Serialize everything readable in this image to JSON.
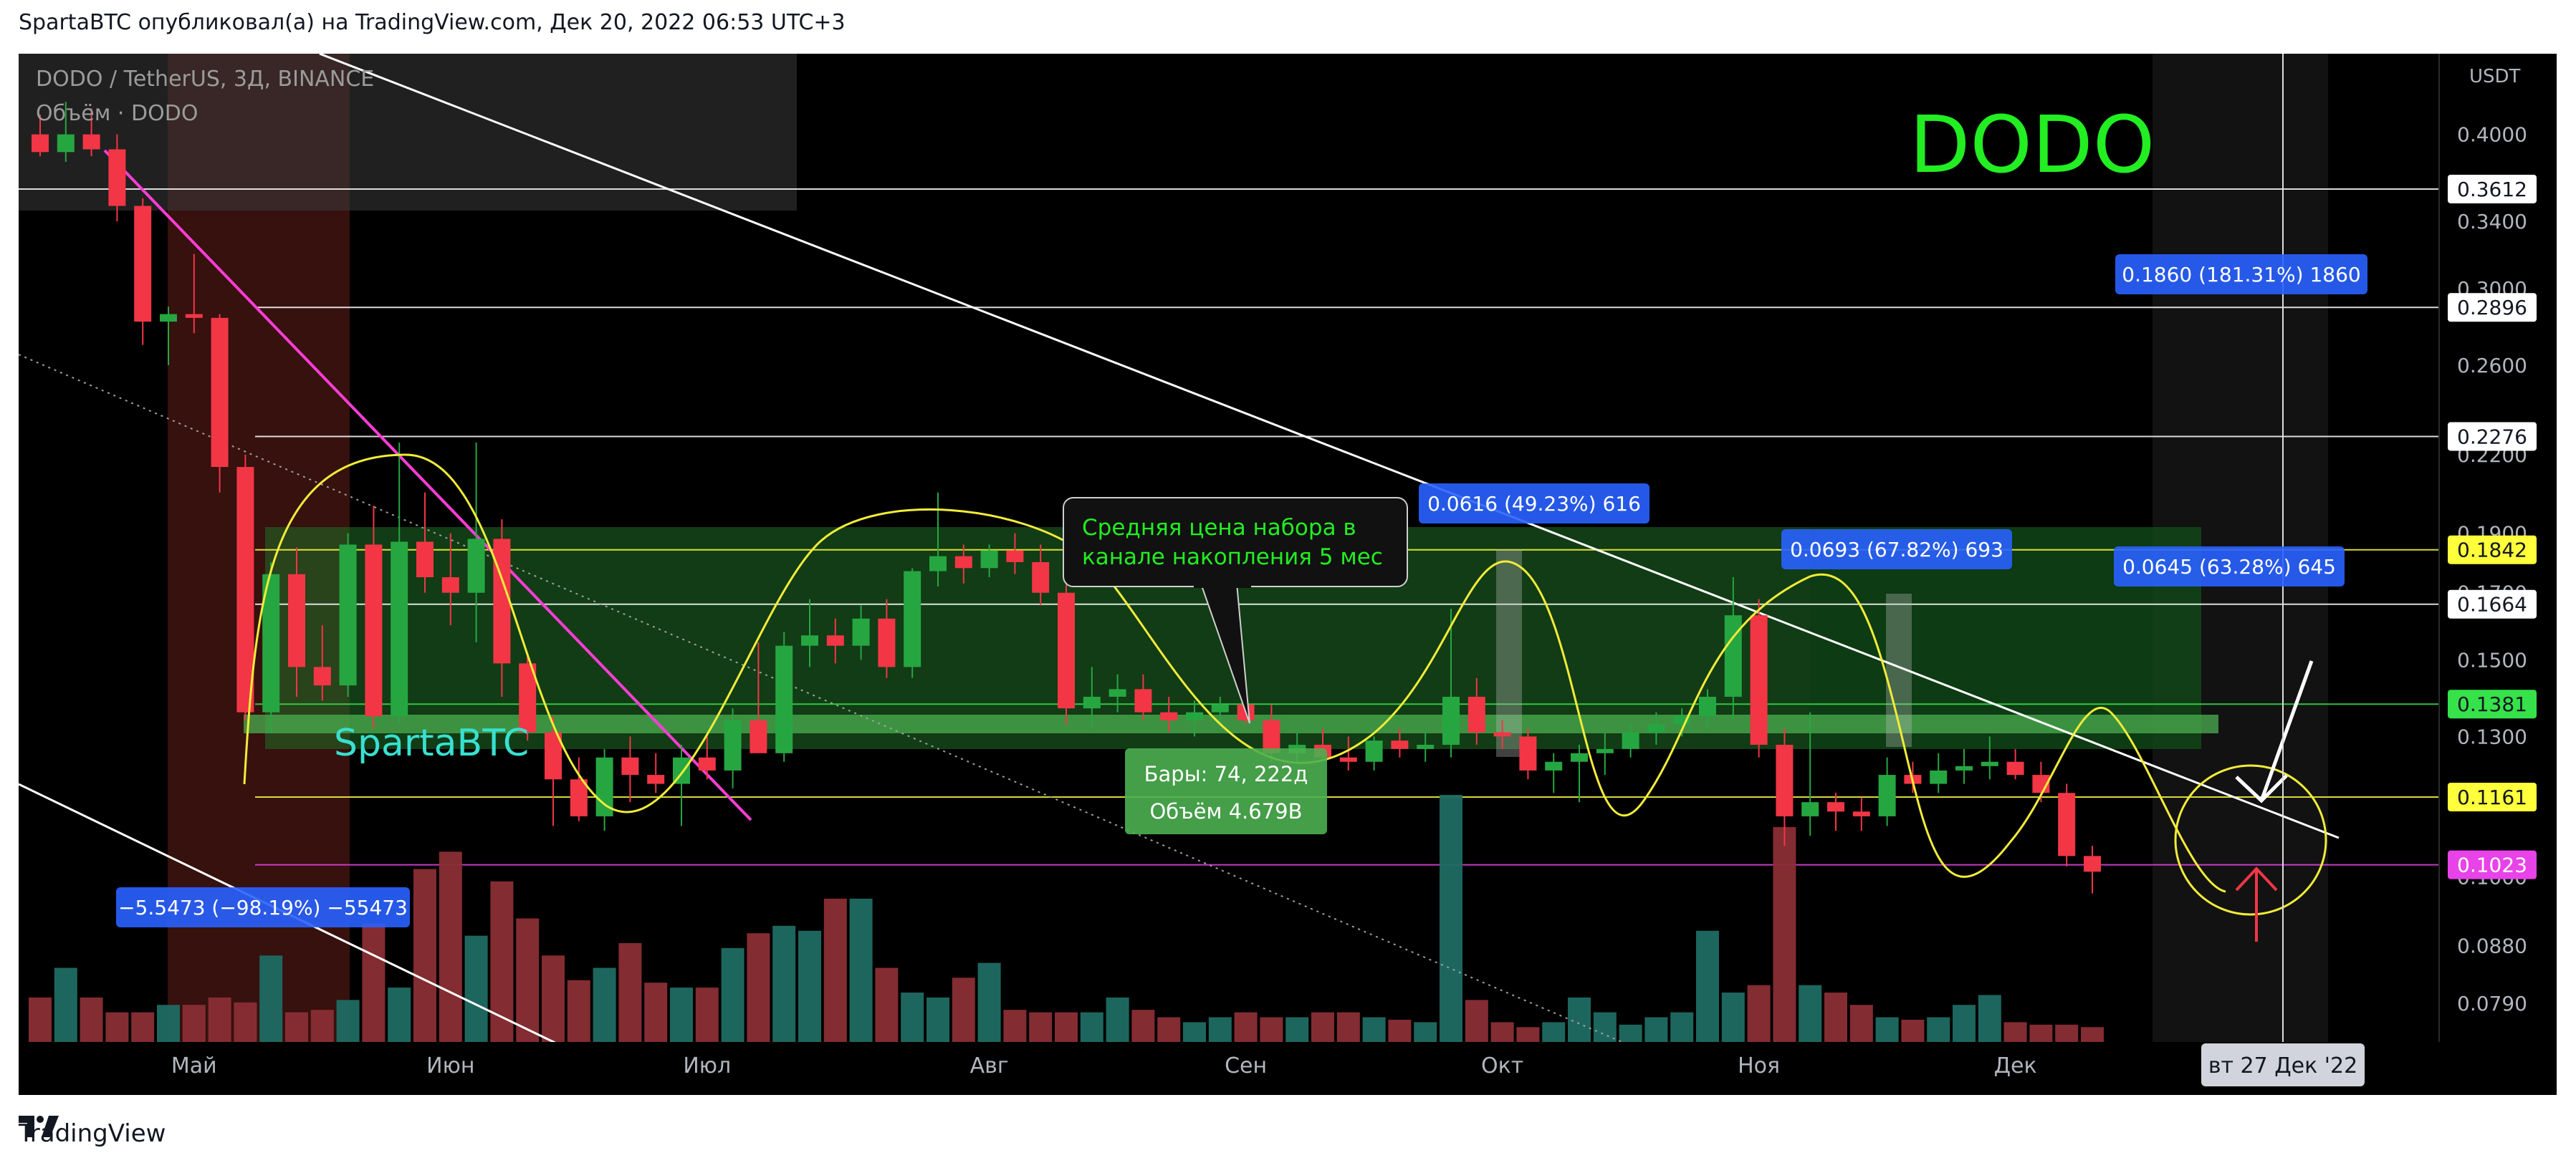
{
  "header": {
    "publish_line": "SpartaBTC опубликовал(а) на TradingView.com, Дек 20, 2022 06:53 UTC+3"
  },
  "footer": {
    "brand": "TradingView"
  },
  "chart_data": {
    "type": "candlestick",
    "symbol_line": "DODO / TetherUS, 3Д, BINANCE",
    "volume_line": "Объём · DODO",
    "watermark": "DODO",
    "author_tag": "SpartaBTC",
    "currency": "USDT",
    "y_scale": "log",
    "ylim": [
      0.0735,
      0.465
    ],
    "price_ticks": [
      "0.4000",
      "0.3400",
      "0.3000",
      "0.2600",
      "0.2200",
      "0.1900",
      "0.1700",
      "0.1500",
      "0.1300",
      "0.1000",
      "0.0880",
      "0.0790"
    ],
    "x_ticks": [
      "Май",
      "Июн",
      "Июл",
      "Авг",
      "Сен",
      "Окт",
      "Ноя",
      "Дек"
    ],
    "crosshair_date": "вт 27 Дек '22",
    "price_levels": [
      {
        "value": 0.3612,
        "label": "0.3612",
        "color": "#ffffff"
      },
      {
        "value": 0.2896,
        "label": "0.2896",
        "color": "#ffffff"
      },
      {
        "value": 0.2276,
        "label": "0.2276",
        "color": "#ffffff"
      },
      {
        "value": 0.1842,
        "label": "0.1842",
        "color": "#ffff3b"
      },
      {
        "value": 0.1664,
        "label": "0.1664",
        "color": "#ffffff"
      },
      {
        "value": 0.1381,
        "label": "0.1381",
        "color": "#35e24a"
      },
      {
        "value": 0.1161,
        "label": "0.1161",
        "color": "#ffff3b"
      },
      {
        "value": 0.1023,
        "label": "0.1023",
        "color": "#e843e8"
      }
    ],
    "annotations": [
      {
        "text": "0.1860 (181.31%) 1860",
        "kind": "measure"
      },
      {
        "text": "0.0616 (49.23%) 616",
        "kind": "measure"
      },
      {
        "text": "0.0693 (67.82%) 693",
        "kind": "measure"
      },
      {
        "text": "0.0645 (63.28%) 645",
        "kind": "measure"
      },
      {
        "text": "−5.5473 (−98.19%) −55473",
        "kind": "measure"
      },
      {
        "text": "Средняя цена набора в канале накопления 5 мес",
        "kind": "callout"
      },
      {
        "text": "Бары: 74, 222д",
        "kind": "range"
      },
      {
        "text": "Объём 4.679B",
        "kind": "range"
      }
    ],
    "candles": [
      [
        0.4,
        0.415,
        0.384,
        0.387
      ],
      [
        0.387,
        0.425,
        0.38,
        0.4
      ],
      [
        0.4,
        0.42,
        0.384,
        0.389
      ],
      [
        0.389,
        0.4,
        0.34,
        0.35
      ],
      [
        0.35,
        0.355,
        0.27,
        0.282
      ],
      [
        0.282,
        0.29,
        0.26,
        0.286
      ],
      [
        0.286,
        0.32,
        0.276,
        0.284
      ],
      [
        0.284,
        0.286,
        0.205,
        0.215
      ],
      [
        0.215,
        0.22,
        0.134,
        0.136
      ],
      [
        0.136,
        0.18,
        0.131,
        0.176
      ],
      [
        0.176,
        0.185,
        0.14,
        0.148
      ],
      [
        0.148,
        0.16,
        0.139,
        0.143
      ],
      [
        0.143,
        0.19,
        0.14,
        0.186
      ],
      [
        0.186,
        0.2,
        0.132,
        0.135
      ],
      [
        0.135,
        0.225,
        0.133,
        0.187
      ],
      [
        0.187,
        0.205,
        0.17,
        0.175
      ],
      [
        0.175,
        0.19,
        0.16,
        0.17
      ],
      [
        0.17,
        0.225,
        0.155,
        0.188
      ],
      [
        0.188,
        0.195,
        0.14,
        0.149
      ],
      [
        0.149,
        0.152,
        0.129,
        0.131
      ],
      [
        0.131,
        0.135,
        0.11,
        0.12
      ],
      [
        0.12,
        0.125,
        0.111,
        0.112
      ],
      [
        0.112,
        0.127,
        0.109,
        0.125
      ],
      [
        0.125,
        0.13,
        0.115,
        0.121
      ],
      [
        0.121,
        0.126,
        0.117,
        0.119
      ],
      [
        0.119,
        0.128,
        0.11,
        0.125
      ],
      [
        0.125,
        0.13,
        0.12,
        0.122
      ],
      [
        0.122,
        0.137,
        0.118,
        0.134
      ],
      [
        0.134,
        0.155,
        0.128,
        0.126
      ],
      [
        0.126,
        0.158,
        0.124,
        0.154
      ],
      [
        0.154,
        0.168,
        0.148,
        0.157
      ],
      [
        0.157,
        0.162,
        0.149,
        0.154
      ],
      [
        0.154,
        0.166,
        0.15,
        0.162
      ],
      [
        0.162,
        0.168,
        0.145,
        0.148
      ],
      [
        0.148,
        0.178,
        0.145,
        0.177
      ],
      [
        0.177,
        0.205,
        0.172,
        0.182
      ],
      [
        0.182,
        0.186,
        0.173,
        0.178
      ],
      [
        0.178,
        0.186,
        0.175,
        0.184
      ],
      [
        0.184,
        0.19,
        0.176,
        0.18
      ],
      [
        0.18,
        0.186,
        0.166,
        0.17
      ],
      [
        0.17,
        0.174,
        0.133,
        0.137
      ],
      [
        0.137,
        0.148,
        0.132,
        0.14
      ],
      [
        0.14,
        0.146,
        0.136,
        0.142
      ],
      [
        0.142,
        0.146,
        0.134,
        0.136
      ],
      [
        0.136,
        0.14,
        0.131,
        0.134
      ],
      [
        0.134,
        0.139,
        0.13,
        0.136
      ],
      [
        0.136,
        0.14,
        0.133,
        0.138
      ],
      [
        0.138,
        0.141,
        0.133,
        0.134
      ],
      [
        0.134,
        0.138,
        0.124,
        0.126
      ],
      [
        0.126,
        0.131,
        0.124,
        0.128
      ],
      [
        0.128,
        0.132,
        0.124,
        0.125
      ],
      [
        0.125,
        0.13,
        0.122,
        0.124
      ],
      [
        0.124,
        0.13,
        0.122,
        0.129
      ],
      [
        0.129,
        0.132,
        0.125,
        0.127
      ],
      [
        0.127,
        0.131,
        0.124,
        0.128
      ],
      [
        0.128,
        0.165,
        0.125,
        0.14
      ],
      [
        0.14,
        0.145,
        0.128,
        0.131
      ],
      [
        0.131,
        0.134,
        0.127,
        0.13
      ],
      [
        0.13,
        0.132,
        0.12,
        0.122
      ],
      [
        0.122,
        0.126,
        0.117,
        0.124
      ],
      [
        0.124,
        0.128,
        0.115,
        0.126
      ],
      [
        0.126,
        0.131,
        0.121,
        0.127
      ],
      [
        0.127,
        0.133,
        0.125,
        0.131
      ],
      [
        0.131,
        0.136,
        0.128,
        0.133
      ],
      [
        0.133,
        0.137,
        0.13,
        0.135
      ],
      [
        0.135,
        0.142,
        0.132,
        0.14
      ],
      [
        0.14,
        0.175,
        0.134,
        0.163
      ],
      [
        0.163,
        0.168,
        0.125,
        0.128
      ],
      [
        0.128,
        0.132,
        0.106,
        0.112
      ],
      [
        0.112,
        0.136,
        0.108,
        0.115
      ],
      [
        0.115,
        0.117,
        0.109,
        0.113
      ],
      [
        0.113,
        0.116,
        0.109,
        0.112
      ],
      [
        0.112,
        0.125,
        0.11,
        0.121
      ],
      [
        0.121,
        0.124,
        0.117,
        0.119
      ],
      [
        0.119,
        0.126,
        0.117,
        0.122
      ],
      [
        0.122,
        0.127,
        0.119,
        0.123
      ],
      [
        0.123,
        0.13,
        0.12,
        0.124
      ],
      [
        0.124,
        0.127,
        0.12,
        0.121
      ],
      [
        0.121,
        0.124,
        0.115,
        0.117
      ],
      [
        0.117,
        0.119,
        0.102,
        0.104
      ],
      [
        0.104,
        0.106,
        0.097,
        0.101
      ]
    ],
    "volume": [
      0.18,
      0.3,
      0.18,
      0.12,
      0.12,
      0.15,
      0.15,
      0.18,
      0.16,
      0.35,
      0.12,
      0.13,
      0.17,
      0.48,
      0.22,
      0.7,
      0.77,
      0.43,
      0.65,
      0.5,
      0.35,
      0.25,
      0.3,
      0.4,
      0.24,
      0.22,
      0.22,
      0.38,
      0.44,
      0.47,
      0.45,
      0.58,
      0.58,
      0.3,
      0.2,
      0.18,
      0.26,
      0.32,
      0.13,
      0.12,
      0.12,
      0.12,
      0.18,
      0.13,
      0.1,
      0.08,
      0.1,
      0.12,
      0.1,
      0.1,
      0.12,
      0.12,
      0.1,
      0.09,
      0.08,
      1.0,
      0.17,
      0.08,
      0.06,
      0.08,
      0.18,
      0.12,
      0.07,
      0.1,
      0.12,
      0.45,
      0.2,
      0.23,
      0.87,
      0.23,
      0.2,
      0.15,
      0.1,
      0.09,
      0.1,
      0.15,
      0.19,
      0.08,
      0.07,
      0.07,
      0.06
    ]
  }
}
